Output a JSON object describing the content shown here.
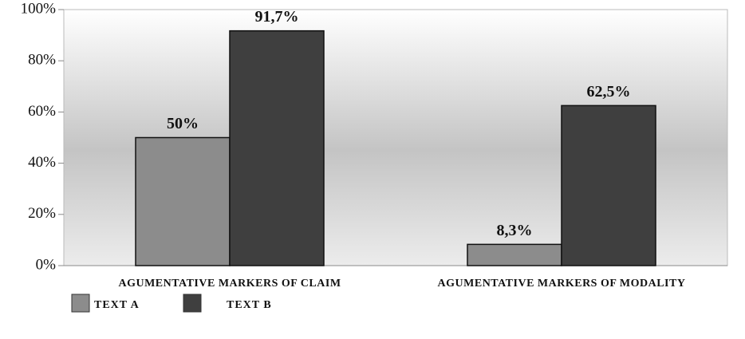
{
  "chart_data": {
    "type": "bar",
    "categories": [
      "AGUMENTATIVE MARKERS OF CLAIM",
      "AGUMENTATIVE MARKERS OF MODALITY"
    ],
    "series": [
      {
        "name": "TEXT A",
        "color": "#8c8c8c",
        "values": [
          50,
          8.3
        ],
        "value_labels": [
          "50%",
          "8,3%"
        ]
      },
      {
        "name": "TEXT B",
        "color": "#3f3f3f",
        "values": [
          91.7,
          62.5
        ],
        "value_labels": [
          "91,7%",
          "62,5%"
        ]
      }
    ],
    "ylim": [
      0,
      100
    ],
    "yticks": [
      {
        "value": 0,
        "label": "0%"
      },
      {
        "value": 20,
        "label": "20%"
      },
      {
        "value": 40,
        "label": "40%"
      },
      {
        "value": 60,
        "label": "60%"
      },
      {
        "value": 80,
        "label": "80%"
      },
      {
        "value": 100,
        "label": "100%"
      }
    ],
    "legend": "bottom-left"
  }
}
